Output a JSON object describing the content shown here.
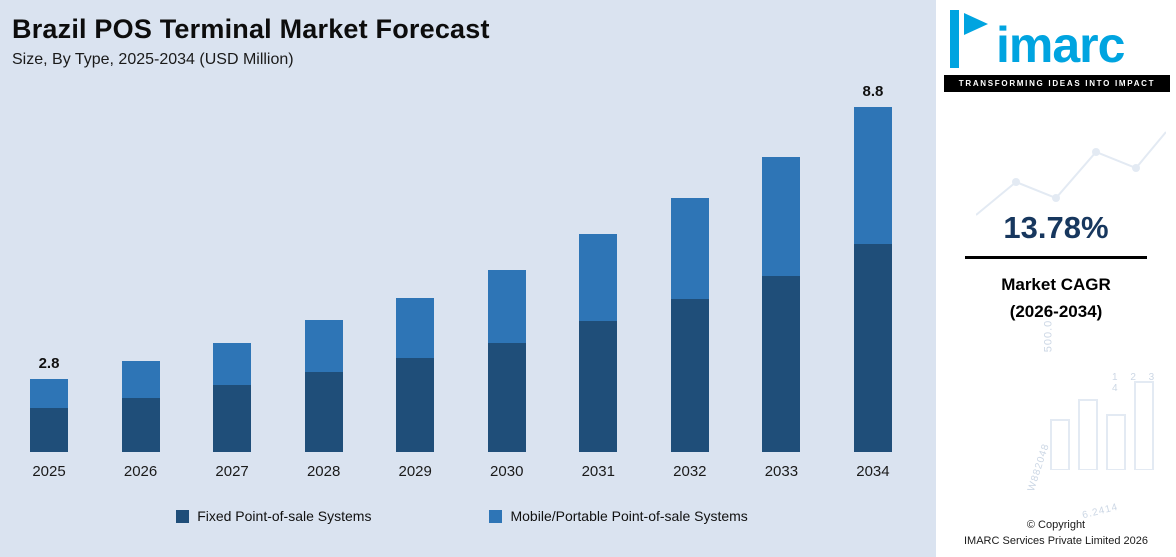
{
  "chart_data": {
    "type": "bar",
    "stacked": true,
    "title": "Brazil POS Terminal Market Forecast",
    "subtitle": "Size, By Type, 2025-2034 (USD Million)",
    "unit": "USD Million",
    "categories": [
      "2025",
      "2026",
      "2027",
      "2028",
      "2029",
      "2030",
      "2031",
      "2032",
      "2033",
      "2034"
    ],
    "series": [
      {
        "name": "Fixed Point-of-sale Systems",
        "color": "#1F4E79",
        "values": [
          1.7,
          1.9,
          2.2,
          2.5,
          2.8,
          3.1,
          3.6,
          4.1,
          4.6,
          5.3
        ]
      },
      {
        "name": "Mobile/Portable Point-of-sale Systems",
        "color": "#2E75B6",
        "values": [
          1.1,
          1.3,
          1.4,
          1.6,
          1.8,
          2.1,
          2.4,
          2.7,
          3.1,
          3.5
        ]
      }
    ],
    "totals": [
      2.8,
      3.2,
      3.6,
      4.1,
      4.6,
      5.2,
      6.0,
      6.8,
      7.7,
      8.8
    ],
    "bar_labels": [
      "2.8",
      "",
      "",
      "",
      "",
      "",
      "",
      "",
      "",
      "8.8"
    ],
    "ylim": [
      1.2,
      8.8
    ],
    "grid": false,
    "legend_position": "bottom"
  },
  "sidebar": {
    "logo_text": "imarc",
    "tagline": "TRANSFORMING IDEAS INTO IMPACT",
    "cagr_value": "13.78%",
    "cagr_label_line1": "Market CAGR",
    "cagr_label_line2": "(2026-2034)",
    "copyright_line1": "© Copyright",
    "copyright_line2": "IMARC Services Private Limited 2026",
    "watermark": [
      "500.0",
      "1 2 3 4",
      "W882048",
      "6.2414"
    ]
  },
  "colors": {
    "chart_bg": "#DAE3F0",
    "fixed_series": "#1F4E79",
    "mobile_series": "#2E75B6",
    "brand_blue": "#00A4E0",
    "cagr_text": "#17375E"
  }
}
